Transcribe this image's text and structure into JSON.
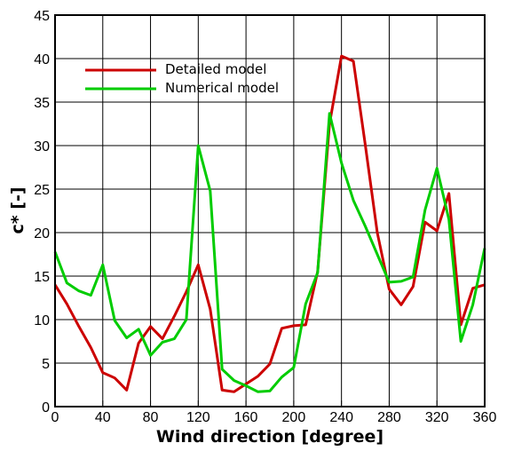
{
  "chart_data": {
    "type": "line",
    "title": "",
    "xlabel": "Wind direction [degree]",
    "ylabel": "c* [-]",
    "xlim": [
      0,
      360
    ],
    "ylim": [
      0,
      45
    ],
    "xticks": [
      0,
      40,
      80,
      120,
      160,
      200,
      240,
      280,
      320,
      360
    ],
    "yticks": [
      0,
      5,
      10,
      15,
      20,
      25,
      30,
      35,
      40,
      45
    ],
    "grid": true,
    "legend_position": "top-left",
    "series": [
      {
        "name": "Detailed model",
        "color": "#cc0000",
        "x": [
          0,
          10,
          20,
          30,
          40,
          50,
          60,
          70,
          80,
          90,
          100,
          110,
          120,
          130,
          140,
          150,
          160,
          170,
          180,
          190,
          200,
          210,
          220,
          230,
          240,
          250,
          260,
          270,
          280,
          290,
          300,
          310,
          320,
          330,
          340,
          350,
          360
        ],
        "y": [
          14.0,
          11.8,
          9.2,
          6.8,
          3.9,
          3.3,
          1.9,
          7.3,
          9.2,
          7.8,
          10.4,
          13.2,
          16.3,
          11.2,
          1.9,
          1.7,
          2.6,
          3.5,
          4.9,
          9.0,
          9.3,
          9.4,
          15.5,
          32.5,
          40.3,
          39.7,
          30.0,
          20.0,
          13.5,
          11.7,
          13.8,
          21.2,
          20.2,
          24.5,
          9.4,
          13.6,
          14.0
        ]
      },
      {
        "name": "Numerical model",
        "color": "#00cc00",
        "x": [
          0,
          10,
          20,
          30,
          40,
          50,
          60,
          70,
          80,
          90,
          100,
          110,
          120,
          130,
          140,
          150,
          160,
          170,
          180,
          190,
          200,
          210,
          220,
          230,
          240,
          250,
          260,
          270,
          280,
          290,
          300,
          310,
          320,
          330,
          340,
          350,
          360
        ],
        "y": [
          17.8,
          14.2,
          13.3,
          12.8,
          16.3,
          9.9,
          7.9,
          8.9,
          5.9,
          7.4,
          7.8,
          10.0,
          30.0,
          24.8,
          4.3,
          3.0,
          2.4,
          1.7,
          1.8,
          3.4,
          4.5,
          11.8,
          15.4,
          33.7,
          28.0,
          23.7,
          20.7,
          17.5,
          14.3,
          14.4,
          14.9,
          22.6,
          27.4,
          21.5,
          7.5,
          11.7,
          18.2
        ]
      }
    ]
  }
}
